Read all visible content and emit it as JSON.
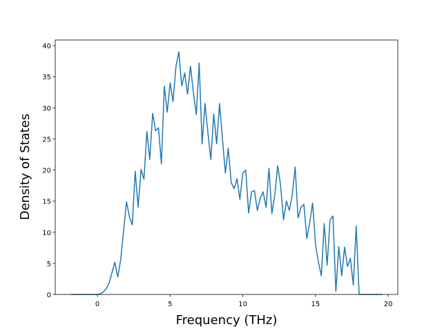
{
  "chart_data": {
    "type": "line",
    "x_label": "Frequency (THz)",
    "y_label": "Density of States",
    "x": [
      -1.8,
      -1.6,
      -1.4,
      -1.2,
      -1.0,
      -0.8,
      -0.6,
      -0.4,
      -0.2,
      0.0,
      0.2,
      0.4,
      0.6,
      0.8,
      1.0,
      1.2,
      1.4,
      1.6,
      1.8,
      2.0,
      2.2,
      2.4,
      2.6,
      2.8,
      3.0,
      3.2,
      3.4,
      3.6,
      3.8,
      4.0,
      4.2,
      4.4,
      4.6,
      4.8,
      5.0,
      5.2,
      5.4,
      5.6,
      5.8,
      6.0,
      6.2,
      6.4,
      6.6,
      6.8,
      7.0,
      7.2,
      7.4,
      7.6,
      7.8,
      8.0,
      8.2,
      8.4,
      8.6,
      8.8,
      9.0,
      9.2,
      9.4,
      9.6,
      9.8,
      10.0,
      10.2,
      10.4,
      10.6,
      10.8,
      11.0,
      11.2,
      11.4,
      11.6,
      11.8,
      12.0,
      12.2,
      12.4,
      12.6,
      12.8,
      13.0,
      13.2,
      13.4,
      13.6,
      13.8,
      14.0,
      14.2,
      14.4,
      14.6,
      14.8,
      15.0,
      15.2,
      15.4,
      15.6,
      15.8,
      16.0,
      16.2,
      16.4,
      16.6,
      16.8,
      17.0,
      17.2,
      17.4,
      17.6,
      17.8,
      18.0,
      18.2,
      18.4,
      18.6,
      18.8,
      19.0,
      19.2,
      19.4,
      19.6
    ],
    "series": [
      {
        "color": "#1f77b4",
        "values": [
          0,
          0,
          0,
          0,
          0,
          0,
          0,
          0,
          0,
          0,
          0.1,
          0.4,
          0.9,
          1.8,
          3.5,
          5.2,
          2.8,
          5.6,
          10.2,
          14.9,
          12.5,
          11.2,
          19.8,
          14.0,
          20.1,
          18.5,
          26.2,
          21.7,
          29.1,
          26.3,
          26.8,
          21.0,
          33.5,
          29.3,
          34.0,
          31.0,
          36.6,
          39.0,
          33.5,
          35.6,
          32.2,
          36.7,
          32.5,
          28.9,
          37.2,
          24.2,
          30.7,
          26.0,
          21.7,
          29.0,
          24.2,
          30.7,
          25.0,
          19.5,
          23.5,
          18.0,
          17.0,
          18.6,
          15.3,
          19.5,
          20.0,
          13.1,
          16.5,
          16.7,
          13.5,
          15.5,
          16.5,
          14.0,
          20.3,
          13.0,
          16.0,
          20.7,
          17.5,
          12.0,
          15.0,
          13.5,
          16.0,
          20.5,
          12.3,
          14.0,
          14.5,
          9.0,
          11.5,
          14.7,
          8.0,
          5.2,
          3.0,
          11.4,
          4.7,
          12.0,
          12.6,
          0.5,
          7.7,
          3.0,
          7.6,
          4.5,
          5.8,
          1.5,
          11.0,
          0,
          0,
          0,
          0,
          0,
          0,
          0,
          0,
          0
        ]
      }
    ],
    "xlim": [
      -2.9,
      20.66
    ],
    "ylim": [
      0,
      40.9
    ],
    "xticks": [
      0,
      5,
      10,
      15,
      20
    ],
    "yticks": [
      0,
      5,
      10,
      15,
      20,
      25,
      30,
      35,
      40
    ],
    "grid": false
  }
}
